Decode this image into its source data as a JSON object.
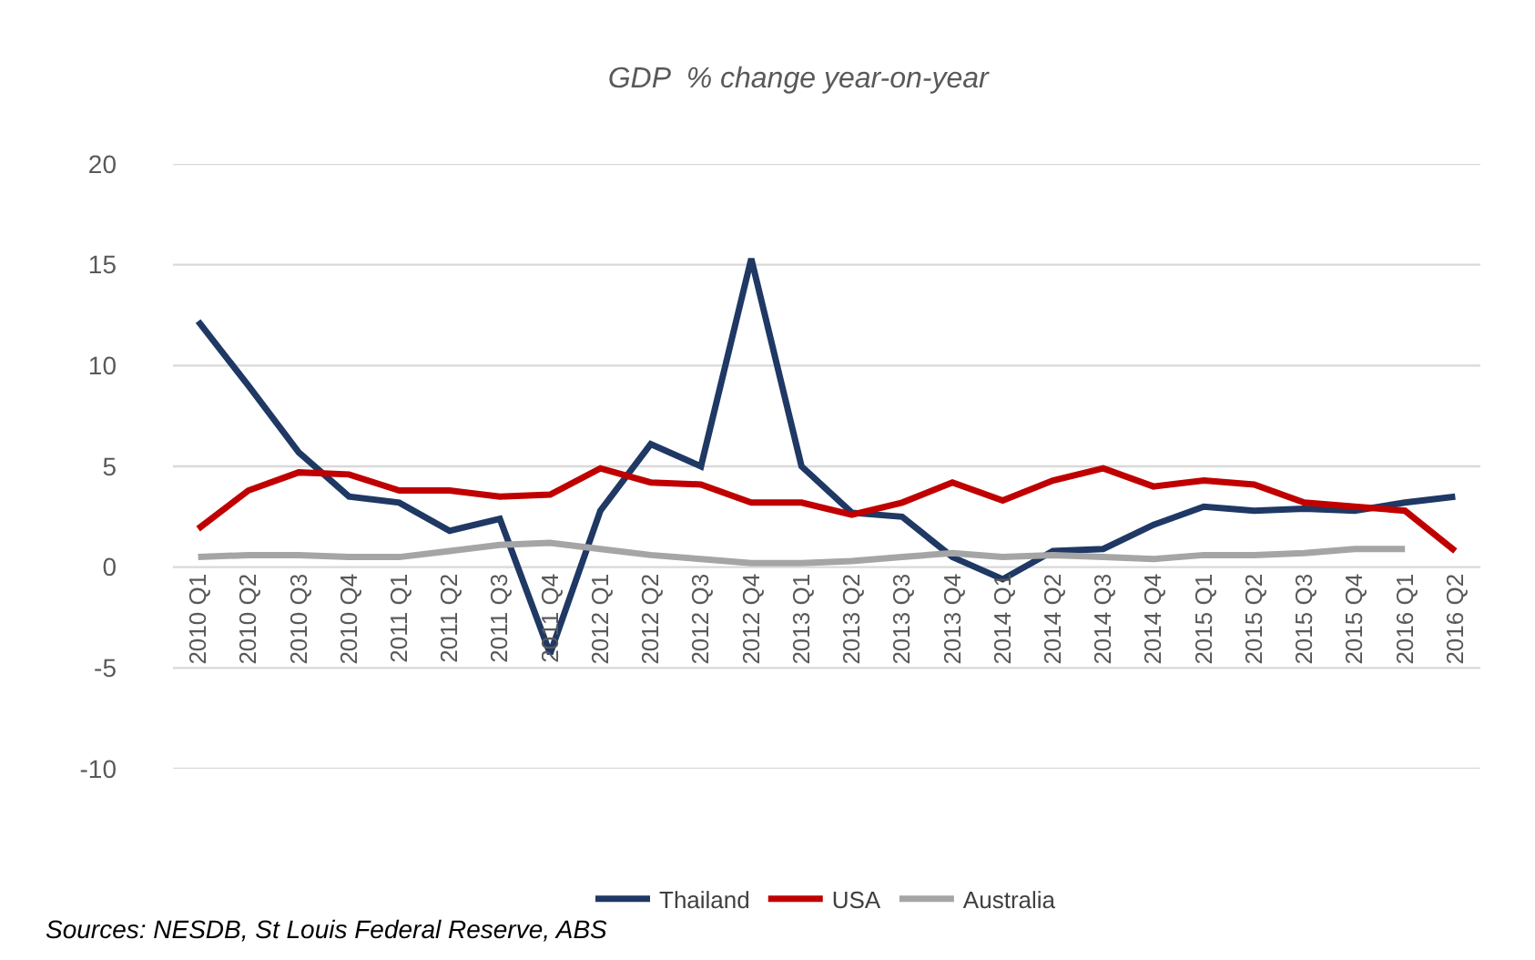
{
  "chart_data": {
    "type": "line",
    "title": "GDP  % change year-on-year",
    "categories": [
      "2010 Q1",
      "2010 Q2",
      "2010 Q3",
      "2010 Q4",
      "2011 Q1",
      "2011 Q2",
      "2011 Q3",
      "2011 Q4",
      "2012 Q1",
      "2012 Q2",
      "2012 Q3",
      "2012 Q4",
      "2013 Q1",
      "2013 Q2",
      "2013 Q3",
      "2013 Q4",
      "2014 Q1",
      "2014 Q2",
      "2014 Q3",
      "2014 Q4",
      "2015 Q1",
      "2015 Q2",
      "2015 Q3",
      "2015 Q4",
      "2016 Q1",
      "2016 Q2"
    ],
    "series": [
      {
        "name": "Thailand",
        "color": "#1f3864",
        "values": [
          12.2,
          9.0,
          5.7,
          3.5,
          3.2,
          1.8,
          2.4,
          -4.3,
          2.8,
          6.1,
          5.0,
          15.3,
          5.0,
          2.7,
          2.5,
          0.5,
          -0.6,
          0.8,
          0.9,
          2.1,
          3.0,
          2.8,
          2.9,
          2.8,
          3.2,
          3.5
        ]
      },
      {
        "name": "USA",
        "color": "#c00000",
        "values": [
          1.9,
          3.8,
          4.7,
          4.6,
          3.8,
          3.8,
          3.5,
          3.6,
          4.9,
          4.2,
          4.1,
          3.2,
          3.2,
          2.6,
          3.2,
          4.2,
          3.3,
          4.3,
          4.9,
          4.0,
          4.3,
          4.1,
          3.2,
          3.0,
          2.8,
          0.8
        ]
      },
      {
        "name": "Australia",
        "color": "#a5a5a5",
        "values": [
          0.5,
          0.6,
          0.6,
          0.5,
          0.5,
          0.8,
          1.1,
          1.2,
          0.9,
          0.6,
          0.4,
          0.2,
          0.2,
          0.3,
          0.5,
          0.7,
          0.5,
          0.6,
          0.5,
          0.4,
          0.6,
          0.6,
          0.7,
          0.9,
          0.9,
          null
        ]
      }
    ],
    "ylim": [
      -10,
      20
    ],
    "yticks": [
      -10,
      -5,
      0,
      5,
      10,
      15,
      20
    ],
    "grid": "y",
    "legend": "bottom",
    "marker": "none",
    "line_style": "solid",
    "annotations": [
      "Sources: NESDB, St Louis Federal Reserve, ABS"
    ]
  }
}
